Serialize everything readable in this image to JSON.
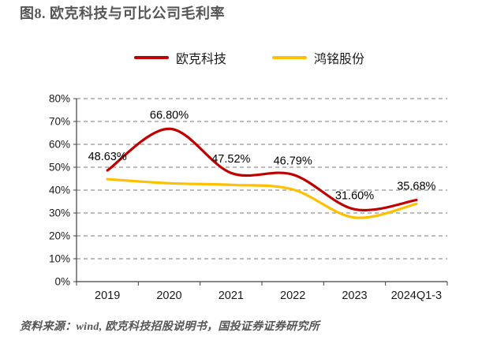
{
  "title": "图8. 欧克科技与可比公司毛利率",
  "source_note": "资料来源：wind, 欧克科技招股说明书，国投证券证券研究所",
  "chart_data": {
    "type": "line",
    "title": "欧克科技与可比公司毛利率",
    "categories": [
      "2019",
      "2020",
      "2021",
      "2022",
      "2023",
      "2024Q1-3"
    ],
    "series": [
      {
        "name": "欧克科技",
        "color": "#C00000",
        "values": [
          48.63,
          66.8,
          47.52,
          46.79,
          31.6,
          35.68
        ],
        "point_labels": [
          "48.63%",
          "66.80%",
          "47.52%",
          "46.79%",
          "31.60%",
          "35.68%"
        ]
      },
      {
        "name": "鸿铭股份",
        "color": "#FFC000",
        "values": [
          44.8,
          43.0,
          42.3,
          40.3,
          28.0,
          34.0
        ]
      }
    ],
    "ylim": [
      0,
      80
    ],
    "ytick_step": 10,
    "ytick_suffix": "%",
    "grid": "horizontal-dashed",
    "legend_position": "top",
    "smooth": true,
    "colors": {
      "axis": "#404040",
      "gridline": "#A6A6A6",
      "label_text": "#000000"
    }
  }
}
